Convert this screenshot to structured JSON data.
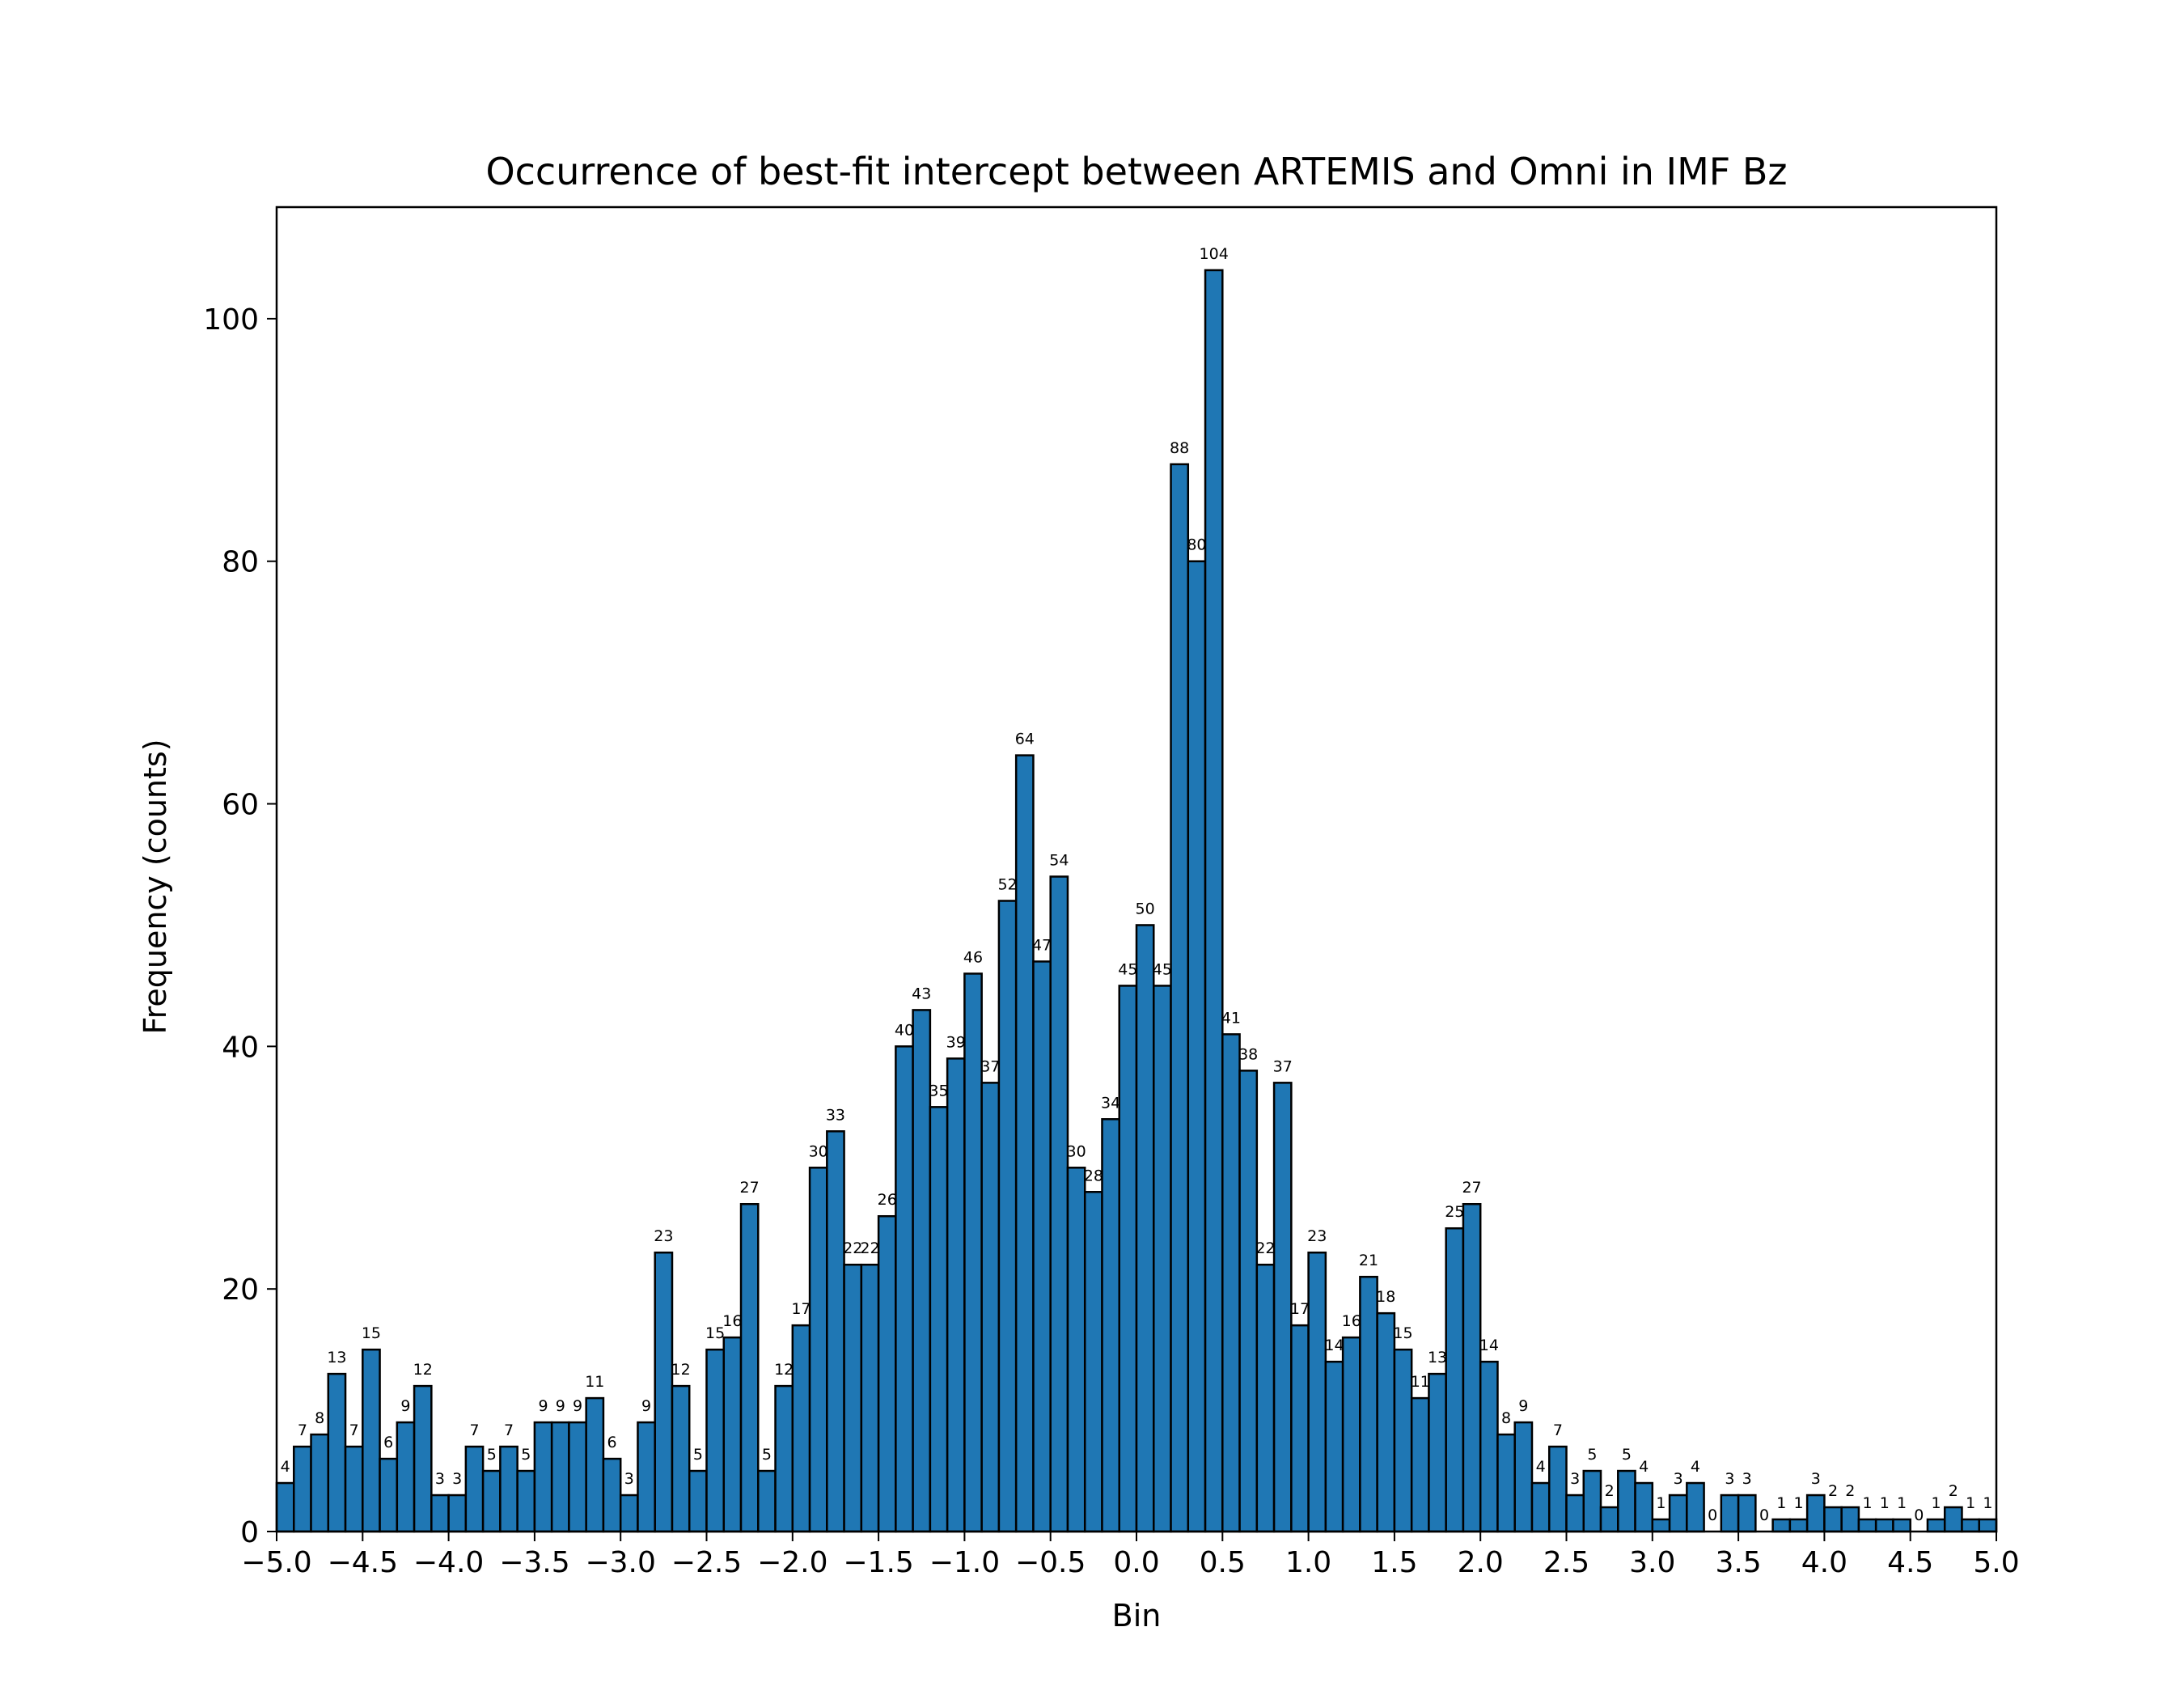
{
  "chart_data": {
    "type": "bar",
    "title": "Occurrence of best-fit intercept between ARTEMIS and Omni in IMF Bz",
    "xlabel": "Bin",
    "ylabel": "Frequency (counts)",
    "xlim": [
      -5.0,
      5.0
    ],
    "ylim": [
      0,
      109.2
    ],
    "bin_width": 0.1,
    "bin_starts": [
      -5.0,
      -4.9,
      -4.8,
      -4.7,
      -4.6,
      -4.5,
      -4.4,
      -4.3,
      -4.2,
      -4.1,
      -4.0,
      -3.9,
      -3.8,
      -3.7,
      -3.6,
      -3.5,
      -3.4,
      -3.3,
      -3.2,
      -3.1,
      -3.0,
      -2.9,
      -2.8,
      -2.7,
      -2.6,
      -2.5,
      -2.4,
      -2.3,
      -2.2,
      -2.1,
      -2.0,
      -1.9,
      -1.8,
      -1.7,
      -1.6,
      -1.5,
      -1.4,
      -1.3,
      -1.2,
      -1.1,
      -1.0,
      -0.9,
      -0.8,
      -0.7,
      -0.6,
      -0.5,
      -0.4,
      -0.3,
      -0.2,
      -0.1,
      0.0,
      0.1,
      0.2,
      0.3,
      0.4,
      0.5,
      0.6,
      0.7,
      0.8,
      0.9,
      1.0,
      1.1,
      1.2,
      1.3,
      1.4,
      1.5,
      1.6,
      1.7,
      1.8,
      1.9,
      2.0,
      2.1,
      2.2,
      2.3,
      2.4,
      2.5,
      2.6,
      2.7,
      2.8,
      2.9,
      3.0,
      3.1,
      3.2,
      3.3,
      3.4,
      3.5,
      3.6,
      3.7,
      3.8,
      3.9,
      4.0,
      4.1,
      4.2,
      4.3,
      4.4,
      4.5,
      4.6,
      4.7,
      4.8,
      4.9
    ],
    "values": [
      4,
      7,
      8,
      13,
      7,
      15,
      6,
      9,
      12,
      3,
      3,
      7,
      5,
      7,
      5,
      9,
      9,
      9,
      11,
      6,
      3,
      9,
      23,
      12,
      5,
      15,
      16,
      27,
      5,
      12,
      17,
      30,
      33,
      22,
      22,
      26,
      40,
      43,
      35,
      39,
      46,
      37,
      52,
      64,
      47,
      54,
      30,
      28,
      34,
      45,
      50,
      45,
      88,
      80,
      104,
      41,
      38,
      22,
      37,
      17,
      23,
      14,
      16,
      21,
      18,
      15,
      11,
      13,
      25,
      27,
      14,
      8,
      9,
      4,
      7,
      3,
      5,
      2,
      5,
      4,
      1,
      3,
      4,
      0,
      3,
      3,
      0,
      1,
      1,
      3,
      2,
      2,
      1,
      1,
      1,
      0,
      1,
      2,
      1,
      1
    ],
    "bar_color": "#1f77b4",
    "edge_color": "#000000",
    "x_ticks": [
      -5.0,
      -4.5,
      -4.0,
      -3.5,
      -3.0,
      -2.5,
      -2.0,
      -1.5,
      -1.0,
      -0.5,
      0.0,
      0.5,
      1.0,
      1.5,
      2.0,
      2.5,
      3.0,
      3.5,
      4.0,
      4.5,
      5.0
    ],
    "x_tick_labels": [
      "−5.0",
      "−4.5",
      "−4.0",
      "−3.5",
      "−3.0",
      "−2.5",
      "−2.0",
      "−1.5",
      "−1.0",
      "−0.5",
      "0.0",
      "0.5",
      "1.0",
      "1.5",
      "2.0",
      "2.5",
      "3.0",
      "3.5",
      "4.0",
      "4.5",
      "5.0"
    ],
    "y_ticks": [
      0,
      20,
      40,
      60,
      80,
      100
    ],
    "y_tick_labels": [
      "0",
      "20",
      "40",
      "60",
      "80",
      "100"
    ],
    "grid": false,
    "legend": false
  }
}
